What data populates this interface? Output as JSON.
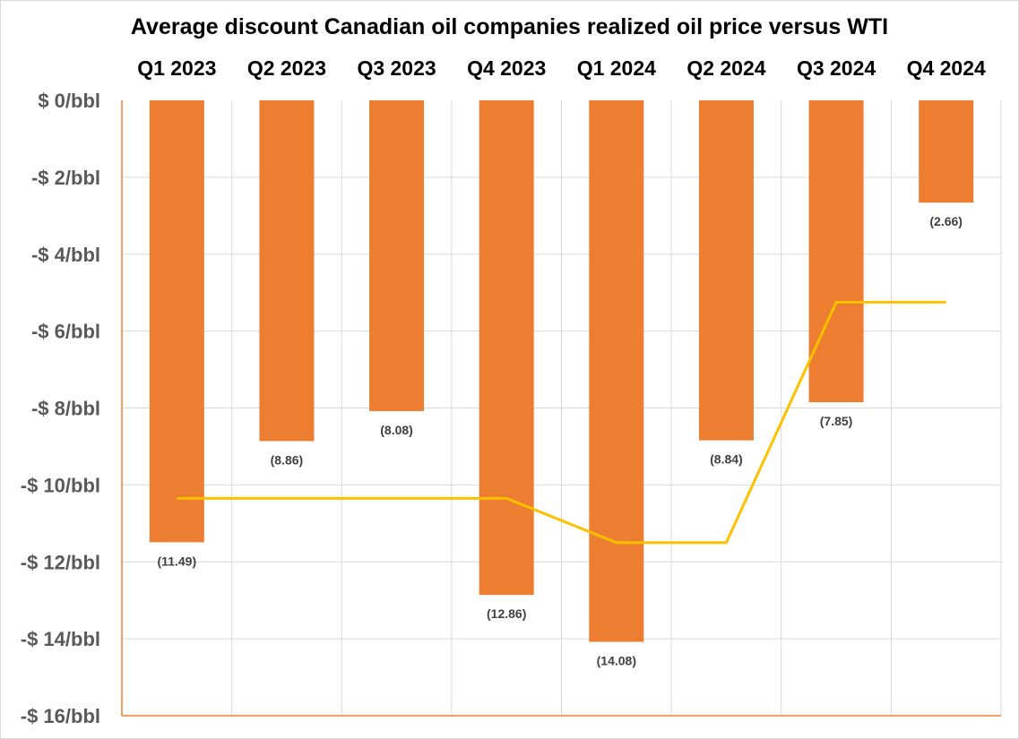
{
  "chart_data": {
    "type": "bar",
    "title": "Average discount Canadian oil companies realized oil price versus WTI",
    "categories": [
      "Q1 2023",
      "Q2 2023",
      "Q3 2023",
      "Q4 2023",
      "Q1 2024",
      "Q2 2024",
      "Q3 2024",
      "Q4 2024"
    ],
    "series": [
      {
        "type": "bar",
        "color": "#ED7D31",
        "values": [
          -11.49,
          -8.86,
          -8.08,
          -12.86,
          -14.08,
          -8.84,
          -7.85,
          -2.66
        ],
        "data_labels": [
          "(11.49)",
          "(8.86)",
          "(8.08)",
          "(12.86)",
          "(14.08)",
          "(8.84)",
          "(7.85)",
          "(2.66)"
        ]
      },
      {
        "type": "line",
        "color": "#FFC000",
        "values": [
          -10.35,
          -10.35,
          -10.35,
          -10.35,
          -11.5,
          -11.5,
          -5.25,
          -5.25
        ]
      }
    ],
    "y_ticks": [
      "$ 0/bbl",
      "-$ 2/bbl",
      "-$ 4/bbl",
      "-$ 6/bbl",
      "-$ 8/bbl",
      "-$ 10/bbl",
      "-$ 12/bbl",
      "-$ 14/bbl",
      "-$ 16/bbl"
    ],
    "ylim": [
      -16,
      0
    ],
    "category_axis_position": "top",
    "grid": true,
    "legend": "none",
    "colors": {
      "gridline": "#d9d9d9",
      "axis": "#ED7D31",
      "tick_text": "#595959"
    }
  }
}
